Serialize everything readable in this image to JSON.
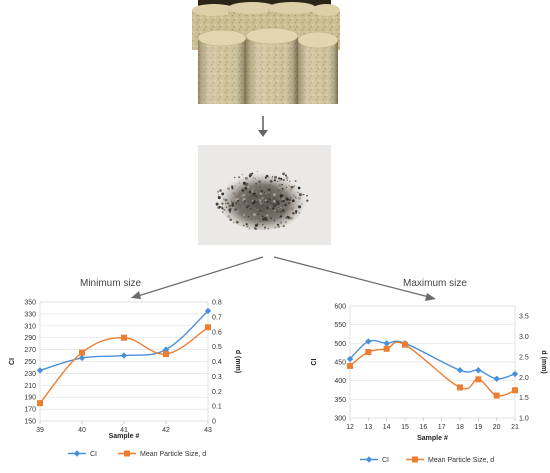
{
  "labels": {
    "min_size": "Minimum size",
    "max_size": "Maximum size"
  },
  "chart_data": [
    {
      "type": "line",
      "x": [
        39,
        40,
        41,
        42,
        43
      ],
      "xlabel": "Sample #",
      "ylabel": "CI",
      "y2label": "d (mm)",
      "ylim": [
        150,
        350
      ],
      "y2lim": [
        0,
        0.8
      ],
      "x_ticks": [
        "39",
        "40",
        "41",
        "42",
        "43"
      ],
      "y_ticks": [
        "150",
        "170",
        "190",
        "210",
        "230",
        "250",
        "270",
        "290",
        "310",
        "330",
        "350"
      ],
      "y2_ticks": [
        "0",
        "0.1",
        "0.2",
        "0.3",
        "0.4",
        "0.5",
        "0.6",
        "0.7",
        "0.8"
      ],
      "series": [
        {
          "name": "CI",
          "axis": "left",
          "color": "#4a90d9",
          "marker": "diamond",
          "values": [
            235,
            256,
            260,
            270,
            335
          ]
        },
        {
          "name": "Mean Particle Size, d",
          "axis": "right",
          "color": "#ed7d31",
          "marker": "square",
          "values": [
            0.12,
            0.46,
            0.56,
            0.45,
            0.63
          ]
        }
      ],
      "grid": true,
      "legend": "bottom"
    },
    {
      "type": "line",
      "x": [
        12,
        13,
        14,
        15,
        16,
        17,
        18,
        19,
        20,
        21
      ],
      "xlabel": "Sample #",
      "ylabel": "CI",
      "y2label": "d (mm)",
      "ylim": [
        300,
        600
      ],
      "y2lim": [
        1.0,
        3.75
      ],
      "x_ticks": [
        "12",
        "13",
        "14",
        "15",
        "16",
        "17",
        "18",
        "19",
        "20",
        "21"
      ],
      "y_ticks": [
        "300",
        "350",
        "400",
        "450",
        "500",
        "550",
        "600"
      ],
      "y2_ticks": [
        "1.0",
        "1.5",
        "2.0",
        "2.5",
        "3.0",
        "3.5"
      ],
      "series": [
        {
          "name": "CI",
          "axis": "left",
          "color": "#4a90d9",
          "marker": "diamond",
          "x": [
            12,
            13,
            14,
            15,
            18,
            19,
            20,
            21
          ],
          "values": [
            458,
            505,
            500,
            500,
            428,
            428,
            405,
            418
          ]
        },
        {
          "name": "Mean Particle Size, d",
          "axis": "right",
          "color": "#ed7d31",
          "marker": "square",
          "x": [
            12,
            13,
            14,
            15,
            18,
            19,
            20,
            21
          ],
          "values": [
            2.28,
            2.62,
            2.7,
            2.8,
            1.75,
            1.95,
            1.55,
            1.68
          ]
        }
      ],
      "grid": true,
      "legend": "bottom"
    }
  ]
}
